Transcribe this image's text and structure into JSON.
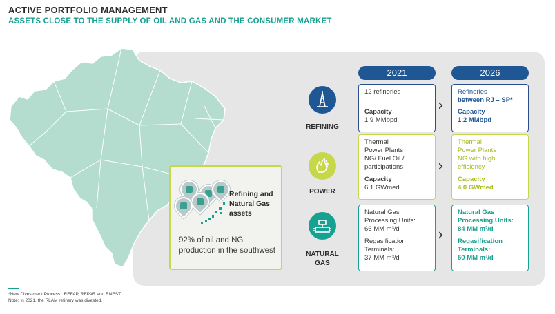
{
  "header": {
    "title": "ACTIVE PORTFOLIO MANAGEMENT",
    "subtitle": "ASSETS CLOSE TO THE SUPPLY OF OIL AND GAS AND THE CONSUMER MARKET"
  },
  "callout": {
    "title": "Refining and Natural Gas assets",
    "text": "92% of oil and NG production in the southwest"
  },
  "years": {
    "y2021": "2021",
    "y2026": "2026"
  },
  "categories": {
    "refining": "REFINING",
    "power": "POWER",
    "gas_line1": "NATURAL",
    "gas_line2": "GAS"
  },
  "refining": {
    "y2021": {
      "top": "12 refineries",
      "cap_label": "Capacity",
      "cap_value": "1.9 MMbpd"
    },
    "y2026": {
      "top_line1": "Refineries",
      "top_line2": "between RJ – SP*",
      "cap_label": "Capacity",
      "cap_value": "1.2 MMbpd"
    }
  },
  "power": {
    "y2021": {
      "top_line1": "Thermal",
      "top_line2": "Power Plants",
      "top_line3": "NG/ Fuel Oil /",
      "top_line4": "participations",
      "cap_label": "Capacity",
      "cap_value": "6.1 GWmed"
    },
    "y2026": {
      "top_line1": "Thermal",
      "top_line2": "Power Plants",
      "top_line3": "NG with high",
      "top_line4": "efficiency",
      "cap_label": "Capacity",
      "cap_value": "4.0 GWmed"
    }
  },
  "gas": {
    "y2021": {
      "line1": "Natural Gas",
      "line2": "Processing Units:",
      "line3": "66 MM m³/d",
      "line4": "Regasification",
      "line5": "Terminals:",
      "line6": "37 MM m³/d"
    },
    "y2026": {
      "line1": "Natural Gas",
      "line2": "Processing Units:",
      "line3": "84 MM m³/d",
      "line4": "Regasification",
      "line5": "Terminals:",
      "line6": "50 MM m³/d"
    }
  },
  "footnote": {
    "line1": "*New Divestment Process : REFAP, REPAR and RNEST.",
    "line2": "Note: In 2021, the RLAM refinery was divested."
  },
  "colors": {
    "teal": "#17a191",
    "navy": "#1f5694",
    "lime": "#c6d84a",
    "map_fill": "#b4dccf"
  },
  "icons": [
    "refinery-tower-icon",
    "power-flame-icon",
    "gas-pipe-valve-icon",
    "chevron-right-icon",
    "location-pin-icon"
  ]
}
